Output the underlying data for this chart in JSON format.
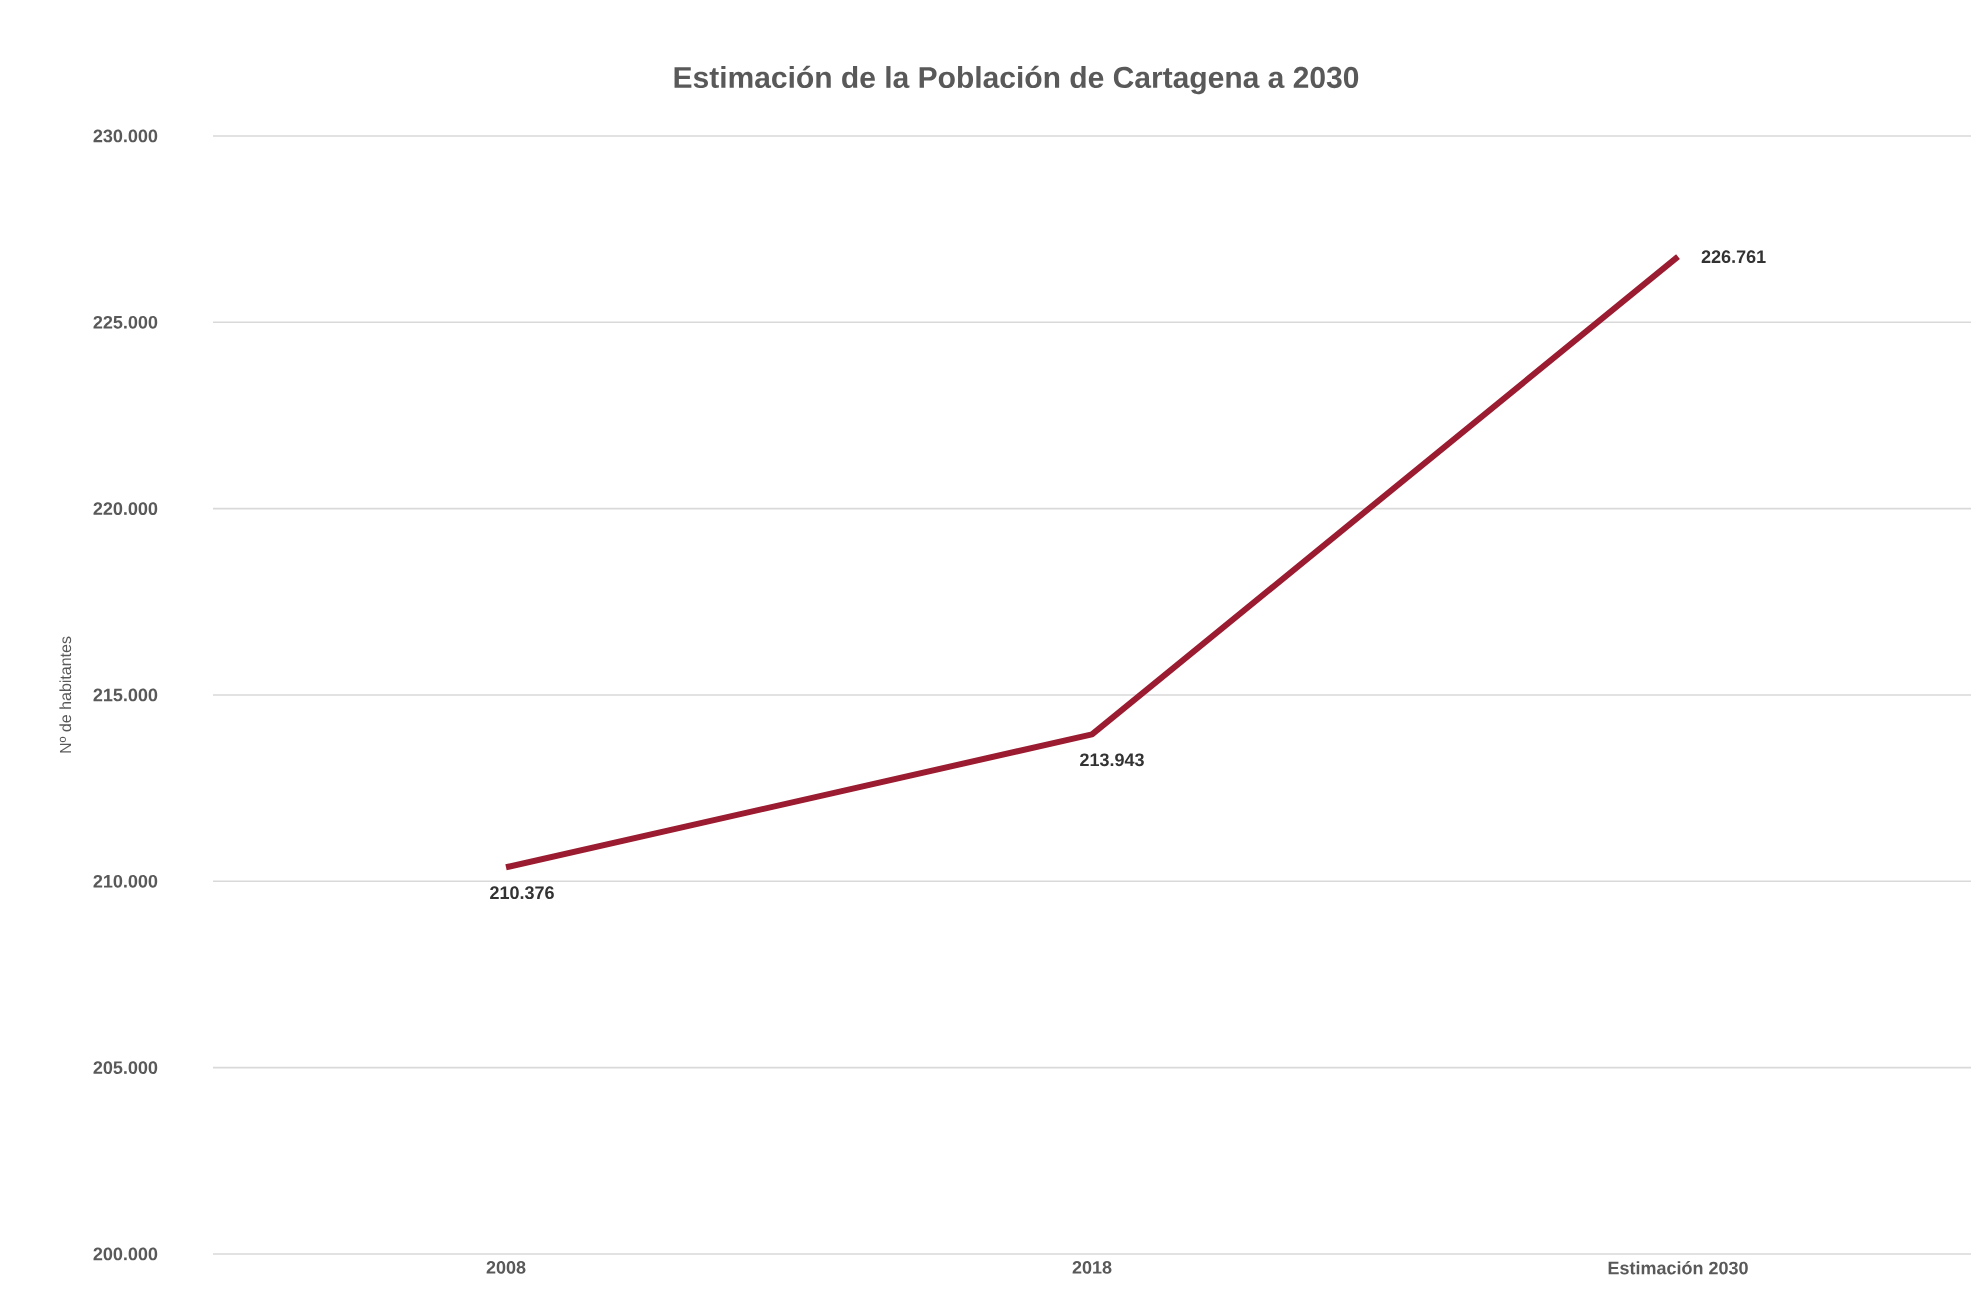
{
  "chart_data": {
    "type": "line",
    "title": "Estimación  de la Población de Cartagena  a 2030",
    "ylabel": "Nº de habitantes",
    "categories": [
      "2008",
      "2018",
      "Estimación 2030"
    ],
    "series": [
      {
        "color": "#9b1b30",
        "values": [
          210376,
          213943,
          226761
        ],
        "value_labels": [
          "210.376",
          "213.943",
          "226.761"
        ]
      }
    ],
    "ylim": [
      200000,
      230000
    ],
    "yticks": [
      {
        "value": 200000,
        "label": "200.000"
      },
      {
        "value": 205000,
        "label": "205.000"
      },
      {
        "value": 210000,
        "label": "210.000"
      },
      {
        "value": 215000,
        "label": "215.000"
      },
      {
        "value": 220000,
        "label": "220.000"
      },
      {
        "value": 225000,
        "label": "225.000"
      },
      {
        "value": 230000,
        "label": "230.000"
      }
    ],
    "grid": "y",
    "marker": "none",
    "line_style": "solid"
  }
}
